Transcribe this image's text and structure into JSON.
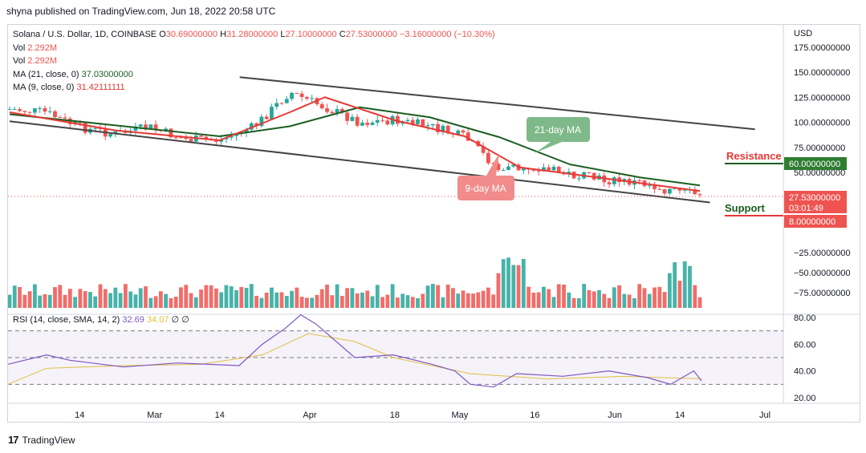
{
  "header": {
    "published": "shyna published on TradingView.com, Jun 18, 2022 20:58 UTC"
  },
  "legend": {
    "symbol": "Solana / U.S. Dollar, 1D, COINBASE",
    "o_label": "O",
    "o_value": "30.69000000",
    "h_label": "H",
    "h_value": "31.28000000",
    "l_label": "L",
    "l_value": "27.10000000",
    "c_label": "C",
    "c_value": "27.53000000",
    "change": "−3.16000000 (−10.30%)",
    "vol1_label": "Vol",
    "vol1_value": "2.292M",
    "vol2_label": "Vol",
    "vol2_value": "2.292M",
    "ma21_label": "MA (21, close, 0)",
    "ma21_value": "37.03000000",
    "ma9_label": "MA (9, close, 0)",
    "ma9_value": "31.42111111"
  },
  "rsi_legend": {
    "label": "RSI (14, close, SMA, 14, 2)",
    "rsi": "32.69",
    "sma": "34.07",
    "x1": "∅",
    "x2": "∅"
  },
  "annotations": {
    "ma21": "21-day MA",
    "ma9": "9-day MA",
    "resistance": "Resistance",
    "support": "Support"
  },
  "price_axis": {
    "currency": "USD",
    "ticks": [
      {
        "label": "175.00000000",
        "value": 175
      },
      {
        "label": "150.00000000",
        "value": 150
      },
      {
        "label": "125.00000000",
        "value": 125
      },
      {
        "label": "100.00000000",
        "value": 100
      },
      {
        "label": "75.00000000",
        "value": 75
      },
      {
        "label": "50.00000000",
        "value": 50
      },
      {
        "label": "−25.00000000",
        "value": -25
      },
      {
        "label": "−50.00000000",
        "value": -50
      },
      {
        "label": "−75.00000000",
        "value": -75
      }
    ],
    "resistance_tag": "60.00000000",
    "price_tag": "27.53000000",
    "countdown_tag": "03:01:49",
    "support_tag": "8.00000000"
  },
  "rsi_axis": {
    "ticks": [
      "80.00",
      "60.00",
      "40.00",
      "20.00"
    ]
  },
  "time_axis": {
    "labels": [
      "14",
      "Mar",
      "14",
      "Apr",
      "18",
      "May",
      "16",
      "Jun",
      "14",
      "Jul"
    ]
  },
  "footer": {
    "brand": "TradingView"
  },
  "colors": {
    "up": "#26a69a",
    "down": "#ef5350",
    "ma9": "#e53935",
    "ma21": "#1b5e20",
    "rsi": "#7e57c2",
    "rsi_sma": "#e0c040",
    "channel": "#444444"
  },
  "chart_data": {
    "type": "candlestick",
    "title": "Solana / U.S. Dollar, 1D, COINBASE",
    "ylabel": "USD",
    "ylim": [
      -80,
      180
    ],
    "x_range": [
      "2022-01-31",
      "2022-07-05"
    ],
    "channel": {
      "upper": [
        {
          "date": "2022-03-18",
          "value": 145
        },
        {
          "date": "2022-06-29",
          "value": 93
        }
      ],
      "lower": [
        {
          "date": "2022-01-31",
          "value": 101
        },
        {
          "date": "2022-06-20",
          "value": 20
        }
      ]
    },
    "resistance": 60,
    "support": 8,
    "last_close": 27.53,
    "ohlc_close": [
      {
        "date": "2022-01-31",
        "close": 113
      },
      {
        "date": "2022-02-07",
        "close": 110
      },
      {
        "date": "2022-02-14",
        "close": 95
      },
      {
        "date": "2022-02-21",
        "close": 88
      },
      {
        "date": "2022-02-28",
        "close": 95
      },
      {
        "date": "2022-03-07",
        "close": 83
      },
      {
        "date": "2022-03-14",
        "close": 82
      },
      {
        "date": "2022-03-21",
        "close": 96
      },
      {
        "date": "2022-03-28",
        "close": 130
      },
      {
        "date": "2022-04-04",
        "close": 115
      },
      {
        "date": "2022-04-11",
        "close": 100
      },
      {
        "date": "2022-04-18",
        "close": 102
      },
      {
        "date": "2022-04-25",
        "close": 96
      },
      {
        "date": "2022-05-02",
        "close": 85
      },
      {
        "date": "2022-05-09",
        "close": 52
      },
      {
        "date": "2022-05-16",
        "close": 56
      },
      {
        "date": "2022-05-23",
        "close": 48
      },
      {
        "date": "2022-05-30",
        "close": 42
      },
      {
        "date": "2022-06-06",
        "close": 40
      },
      {
        "date": "2022-06-13",
        "close": 31
      },
      {
        "date": "2022-06-18",
        "close": 27.53
      }
    ],
    "ma21": [
      {
        "date": "2022-01-31",
        "value": 108
      },
      {
        "date": "2022-02-21",
        "value": 97
      },
      {
        "date": "2022-03-14",
        "value": 86
      },
      {
        "date": "2022-03-28",
        "value": 96
      },
      {
        "date": "2022-04-11",
        "value": 115
      },
      {
        "date": "2022-04-25",
        "value": 105
      },
      {
        "date": "2022-05-09",
        "value": 85
      },
      {
        "date": "2022-05-23",
        "value": 58
      },
      {
        "date": "2022-06-06",
        "value": 45
      },
      {
        "date": "2022-06-18",
        "value": 37.03
      }
    ],
    "ma9": [
      {
        "date": "2022-01-31",
        "value": 110
      },
      {
        "date": "2022-02-21",
        "value": 92
      },
      {
        "date": "2022-03-14",
        "value": 82
      },
      {
        "date": "2022-03-28",
        "value": 110
      },
      {
        "date": "2022-04-04",
        "value": 125
      },
      {
        "date": "2022-04-18",
        "value": 102
      },
      {
        "date": "2022-05-02",
        "value": 86
      },
      {
        "date": "2022-05-13",
        "value": 55
      },
      {
        "date": "2022-05-30",
        "value": 44
      },
      {
        "date": "2022-06-18",
        "value": 31.42
      }
    ],
    "rsi": {
      "ylim": [
        20,
        80
      ],
      "last": 32.69,
      "sma_last": 34.07,
      "levels": [
        70,
        50,
        30
      ]
    }
  }
}
